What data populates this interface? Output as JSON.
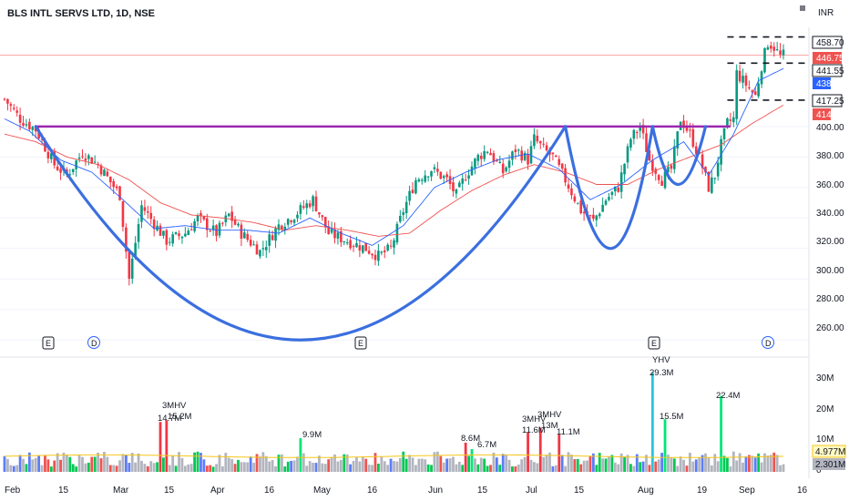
{
  "header": {
    "title": "BLS INTL SERVS LTD, 1D, NSE",
    "currency": "INR"
  },
  "price_axis": {
    "ticks": [
      "400.00",
      "380.00",
      "360.00",
      "340.00",
      "320.00",
      "300.00",
      "280.00",
      "260.00"
    ],
    "tags": [
      {
        "label": "458.70",
        "value": 458.7,
        "color": "#ffffff",
        "text_color": "#131722",
        "border": "#131722"
      },
      {
        "label": "446.75",
        "value": 446.75,
        "color": "#ef5350",
        "text_color": "#ffffff",
        "border": "#ef5350"
      },
      {
        "label": "441.55",
        "value": 441.55,
        "color": "#ffffff",
        "text_color": "#131722",
        "border": "#131722"
      },
      {
        "label": "438",
        "value": 438,
        "color": "#2962ff",
        "text_color": "#ffffff",
        "border": "#2962ff"
      },
      {
        "label": "417.25",
        "value": 417.25,
        "color": "#ffffff",
        "text_color": "#131722",
        "border": "#131722"
      },
      {
        "label": "414",
        "value": 414,
        "color": "#ef5350",
        "text_color": "#ffffff",
        "border": "#ef5350"
      }
    ]
  },
  "volume_axis": {
    "ticks": [
      "30M",
      "20M",
      "10M",
      "0"
    ],
    "tags": [
      {
        "label": "4.977M",
        "value": 4.977,
        "color": "#fff9c4",
        "text_color": "#131722"
      },
      {
        "label": "2.301M",
        "value": 2.301,
        "color": "#b2b5be",
        "text_color": "#131722"
      }
    ]
  },
  "x_axis": {
    "labels": [
      "Feb",
      "15",
      "Mar",
      "15",
      "Apr",
      "16",
      "May",
      "16",
      "Jun",
      "15",
      "Jul",
      "15",
      "Aug",
      "19",
      "Sep",
      "16"
    ]
  },
  "event_markers": [
    "E",
    "D",
    "E",
    "E",
    "D"
  ],
  "volume_annotations": [
    "3MHV",
    "14.7M",
    "15.2M",
    "9.9M",
    "8.6M",
    "6.7M",
    "3MHV",
    "11.6M",
    "3MHV",
    "13M",
    "11.1M",
    "YHV",
    "29.3M",
    "15.5M",
    "22.4M"
  ],
  "colors": {
    "up": "#089981",
    "down": "#f23645",
    "pattern": "#3b6fe0",
    "resistance": "#9c27b0",
    "ma_fast": "#2962ff",
    "ma_slow": "#ef5350",
    "vol_avg": "#f5c518"
  },
  "chart_data": {
    "type": "candlestick",
    "title": "BLS INTL SERVS LTD, 1D, NSE",
    "y_axis": {
      "min": 250,
      "max": 465,
      "unit": "INR"
    },
    "volume_axis": {
      "min": 0,
      "max": 33,
      "unit": "M"
    },
    "resistance_level": 400,
    "levels": [
      458.7,
      441.55,
      417.25
    ],
    "last_price": 446.75,
    "series": [
      {
        "name": "price",
        "path": [
          [
            0,
            418
          ],
          [
            5,
            405
          ],
          [
            10,
            398
          ],
          [
            16,
            375
          ],
          [
            20,
            368
          ],
          [
            25,
            383
          ],
          [
            30,
            375
          ],
          [
            37,
            355
          ],
          [
            40,
            300
          ],
          [
            44,
            348
          ],
          [
            52,
            325
          ],
          [
            58,
            330
          ],
          [
            62,
            340
          ],
          [
            68,
            330
          ],
          [
            72,
            342
          ],
          [
            76,
            330
          ],
          [
            82,
            318
          ],
          [
            88,
            335
          ],
          [
            93,
            342
          ],
          [
            99,
            352
          ],
          [
            104,
            330
          ],
          [
            110,
            325
          ],
          [
            116,
            320
          ],
          [
            120,
            315
          ],
          [
            124,
            320
          ],
          [
            128,
            345
          ],
          [
            132,
            365
          ],
          [
            137,
            372
          ],
          [
            142,
            365
          ],
          [
            145,
            355
          ],
          [
            148,
            368
          ],
          [
            152,
            380
          ],
          [
            155,
            385
          ],
          [
            160,
            370
          ],
          [
            164,
            385
          ],
          [
            168,
            378
          ],
          [
            170,
            392
          ],
          [
            173,
            385
          ],
          [
            176,
            380
          ],
          [
            180,
            365
          ],
          [
            185,
            345
          ],
          [
            189,
            338
          ],
          [
            193,
            352
          ],
          [
            197,
            360
          ],
          [
            201,
            392
          ],
          [
            204,
            400
          ],
          [
            207,
            378
          ],
          [
            211,
            365
          ],
          [
            214,
            372
          ],
          [
            217,
            405
          ],
          [
            220,
            395
          ],
          [
            223,
            380
          ],
          [
            226,
            360
          ],
          [
            228,
            368
          ],
          [
            230,
            388
          ],
          [
            232,
            402
          ],
          [
            234,
            405
          ],
          [
            235,
            435
          ],
          [
            237,
            430
          ],
          [
            239,
            425
          ],
          [
            241,
            420
          ],
          [
            243,
            440
          ],
          [
            245,
            455
          ],
          [
            247,
            452
          ],
          [
            249,
            446
          ],
          [
            250,
            446.75
          ]
        ]
      },
      {
        "name": "ma_fast",
        "path": [
          [
            0,
            405
          ],
          [
            8,
            397
          ],
          [
            18,
            378
          ],
          [
            28,
            370
          ],
          [
            38,
            352
          ],
          [
            48,
            333
          ],
          [
            58,
            335
          ],
          [
            68,
            332
          ],
          [
            78,
            332
          ],
          [
            88,
            330
          ],
          [
            98,
            340
          ],
          [
            108,
            330
          ],
          [
            118,
            322
          ],
          [
            128,
            335
          ],
          [
            138,
            360
          ],
          [
            148,
            370
          ],
          [
            158,
            378
          ],
          [
            168,
            382
          ],
          [
            178,
            372
          ],
          [
            188,
            352
          ],
          [
            198,
            362
          ],
          [
            208,
            378
          ],
          [
            218,
            390
          ],
          [
            226,
            368
          ],
          [
            234,
            395
          ],
          [
            242,
            430
          ],
          [
            250,
            438
          ]
        ]
      },
      {
        "name": "ma_slow",
        "path": [
          [
            0,
            395
          ],
          [
            10,
            390
          ],
          [
            20,
            380
          ],
          [
            30,
            375
          ],
          [
            40,
            365
          ],
          [
            50,
            350
          ],
          [
            60,
            342
          ],
          [
            70,
            340
          ],
          [
            80,
            337
          ],
          [
            90,
            332
          ],
          [
            100,
            335
          ],
          [
            110,
            332
          ],
          [
            120,
            328
          ],
          [
            130,
            330
          ],
          [
            140,
            345
          ],
          [
            150,
            358
          ],
          [
            160,
            368
          ],
          [
            170,
            375
          ],
          [
            180,
            370
          ],
          [
            190,
            362
          ],
          [
            200,
            362
          ],
          [
            210,
            372
          ],
          [
            220,
            380
          ],
          [
            230,
            388
          ],
          [
            240,
            402
          ],
          [
            250,
            414
          ]
        ]
      }
    ],
    "pattern_curves": [
      {
        "name": "cup",
        "points": [
          [
            10,
            400
          ],
          [
            95,
            260
          ],
          [
            180,
            400
          ]
        ]
      },
      {
        "name": "handle",
        "points": [
          [
            180,
            400
          ],
          [
            195,
            320
          ],
          [
            208,
            400
          ]
        ]
      },
      {
        "name": "handle_2",
        "points": [
          [
            208,
            400
          ],
          [
            216,
            362
          ],
          [
            225,
            400
          ]
        ]
      }
    ],
    "volume_bars": [
      {
        "x": 50,
        "value": 14.7
      },
      {
        "x": 52,
        "value": 15.2
      },
      {
        "x": 95,
        "value": 9.9
      },
      {
        "x": 148,
        "value": 8.6
      },
      {
        "x": 150,
        "value": 6.7
      },
      {
        "x": 168,
        "value": 11.6
      },
      {
        "x": 172,
        "value": 13.0
      },
      {
        "x": 178,
        "value": 11.1
      },
      {
        "x": 208,
        "value": 29.3
      },
      {
        "x": 212,
        "value": 15.5
      },
      {
        "x": 230,
        "value": 22.4
      }
    ]
  }
}
